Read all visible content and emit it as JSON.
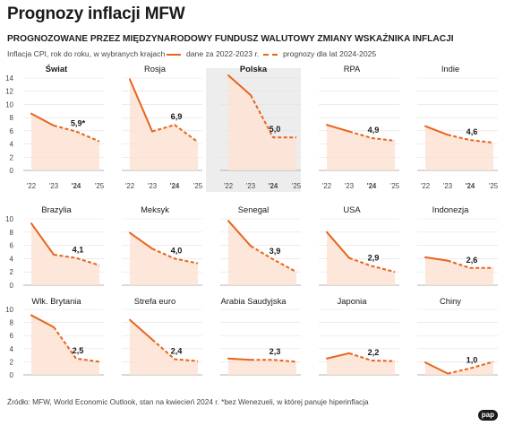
{
  "title": "Prognozy inflacji MFW",
  "subtitle": "PROGNOZOWANE PRZEZ MIĘDZYNARODOWY FUNDUSZ WALUTOWY ZMIANY WSKAŹNIKA INFLACJI",
  "note": "Inflacja CPI, rok do roku, w wybranych krajach",
  "legend": {
    "solid": "dane za 2022-2023 r.",
    "dashed": "prognozy dla lat 2024-2025"
  },
  "source": "Źródło: MFW, World Economic Outlook, stan na kwiecień 2024 r. *bez Wenezueli, w której panuje hiperinflacja",
  "logo": "pap",
  "colors": {
    "line": "#e8641e",
    "fill": "#fbe3d3",
    "highlight": "#ededed"
  },
  "chart_data": {
    "type": "line",
    "x": [
      "'22",
      "'23",
      "'24",
      "'25"
    ],
    "x_emphasis": "'24",
    "y_ticks": [
      0,
      2,
      4,
      6,
      8,
      10,
      12,
      14
    ],
    "rows": [
      {
        "ylim": [
          0,
          14
        ],
        "ytick_labels": [
          "0",
          "2",
          "4",
          "6",
          "8",
          "10",
          "12",
          "14"
        ],
        "series": [
          {
            "name": "Świat",
            "values": [
              8.6,
              6.8,
              5.9,
              4.4
            ],
            "label": "5,9*",
            "bold": true,
            "highlight": false
          },
          {
            "name": "Rosja",
            "values": [
              13.8,
              5.9,
              6.9,
              4.3
            ],
            "label": "6,9",
            "bold": false,
            "highlight": false
          },
          {
            "name": "Polska",
            "values": [
              14.4,
              11.4,
              5.0,
              5.0
            ],
            "label": "5,0",
            "bold": true,
            "highlight": true
          },
          {
            "name": "RPA",
            "values": [
              6.9,
              5.9,
              4.9,
              4.5
            ],
            "label": "4,9",
            "bold": false,
            "highlight": false
          },
          {
            "name": "Indie",
            "values": [
              6.7,
              5.4,
              4.6,
              4.2
            ],
            "label": "4,6",
            "bold": false,
            "highlight": false
          }
        ]
      },
      {
        "ylim": [
          0,
          10
        ],
        "ytick_labels": [
          "0",
          "2",
          "4",
          "6",
          "8",
          "10"
        ],
        "series": [
          {
            "name": "Brazylia",
            "values": [
              9.3,
              4.6,
              4.1,
              3.0
            ],
            "label": "4,1",
            "bold": false,
            "highlight": false
          },
          {
            "name": "Meksyk",
            "values": [
              7.9,
              5.5,
              4.0,
              3.3
            ],
            "label": "4,0",
            "bold": false,
            "highlight": false
          },
          {
            "name": "Senegal",
            "values": [
              9.7,
              5.9,
              3.9,
              2.0
            ],
            "label": "3,9",
            "bold": false,
            "highlight": false
          },
          {
            "name": "USA",
            "values": [
              8.0,
              4.1,
              2.9,
              2.0
            ],
            "label": "2,9",
            "bold": false,
            "highlight": false
          },
          {
            "name": "Indonezja",
            "values": [
              4.2,
              3.7,
              2.6,
              2.6
            ],
            "label": "2,6",
            "bold": false,
            "highlight": false
          }
        ]
      },
      {
        "ylim": [
          0,
          10
        ],
        "ytick_labels": [
          "0",
          "2",
          "4",
          "6",
          "8",
          "10"
        ],
        "series": [
          {
            "name": "Wlk. Brytania",
            "values": [
              9.1,
              7.3,
              2.5,
              2.0
            ],
            "label": "2,5",
            "bold": false,
            "highlight": false
          },
          {
            "name": "Strefa euro",
            "values": [
              8.4,
              5.4,
              2.4,
              2.1
            ],
            "label": "2,4",
            "bold": false,
            "highlight": false
          },
          {
            "name": "Arabia Saudyjska",
            "values": [
              2.5,
              2.3,
              2.3,
              2.0
            ],
            "label": "2,3",
            "bold": false,
            "highlight": false
          },
          {
            "name": "Japonia",
            "values": [
              2.5,
              3.3,
              2.2,
              2.1
            ],
            "label": "2,2",
            "bold": false,
            "highlight": false
          },
          {
            "name": "Chiny",
            "values": [
              1.9,
              0.2,
              1.0,
              2.0
            ],
            "label": "1,0",
            "bold": false,
            "highlight": false
          }
        ]
      }
    ]
  }
}
